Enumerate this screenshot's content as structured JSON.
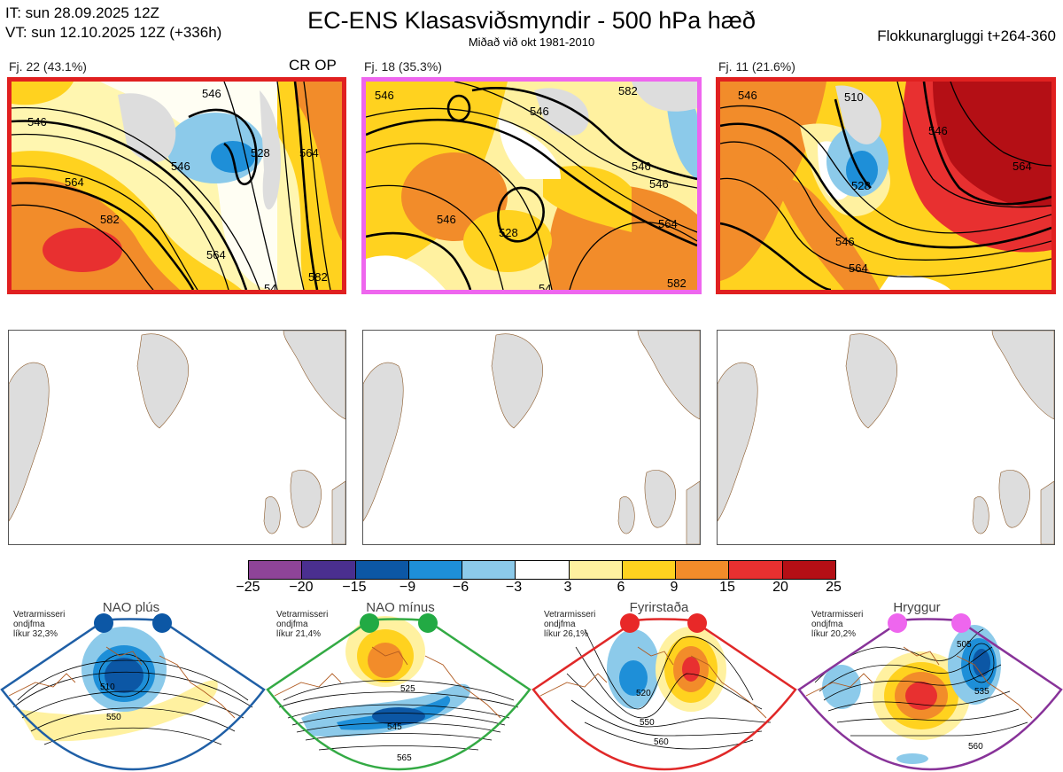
{
  "header": {
    "it": "IT: sun 28.09.2025 12Z",
    "vt": "VT: sun 12.10.2025 12Z  (+336h)",
    "title": "EC-ENS Klasasviðsmyndir - 500 hPa hæð",
    "subtitle": "Miðað við okt 1981-2010",
    "window": "Flokkunargluggi t+264-360"
  },
  "clusters": [
    {
      "label": "Fj. 22 (43.1%)",
      "tag": "CR OP",
      "border_color": "#e02020",
      "contours": [
        "546",
        "528",
        "546",
        "564",
        "582",
        "564",
        "546",
        "564",
        "582",
        "54"
      ]
    },
    {
      "label": "Fj. 18 (35.3%)",
      "tag": "",
      "border_color": "#ee66ee",
      "contours": [
        "546",
        "546",
        "528",
        "546",
        "564",
        "546",
        "582",
        "54",
        "582",
        "546"
      ]
    },
    {
      "label": "Fj. 11 (21.6%)",
      "tag": "",
      "border_color": "#e02020",
      "contours": [
        "510",
        "528",
        "546",
        "546",
        "564",
        "564",
        "546"
      ]
    }
  ],
  "colorbar": {
    "ticks": [
      "−25",
      "−20",
      "−15",
      "−9",
      "−6",
      "−3",
      "3",
      "6",
      "9",
      "15",
      "20",
      "25"
    ],
    "colors": [
      "#8e4498",
      "#4a2f8f",
      "#0c57a5",
      "#1e8fd8",
      "#8ccaea",
      "#ffffff",
      "#fff1a0",
      "#ffd21f",
      "#f28c2a",
      "#e83030",
      "#b40f15"
    ]
  },
  "regimes": [
    {
      "title": "NAO plús",
      "note": [
        "Vetrarmisseri",
        "ondjfma",
        "líkur 32,3%"
      ],
      "border_color": "#1f5fa6",
      "dot_color": "#0c57a5",
      "contours": [
        "510",
        "550"
      ]
    },
    {
      "title": "NAO mínus",
      "note": [
        "Vetrarmisseri",
        "ondjfma",
        "líkur 21,4%"
      ],
      "border_color": "#33aa44",
      "dot_color": "#22aa44",
      "contours": [
        "525",
        "545",
        "565"
      ]
    },
    {
      "title": "Fyrirstaða",
      "note": [
        "Vetrarmisseri",
        "ondjfma",
        "líkur 26,1%"
      ],
      "border_color": "#e02828",
      "dot_color": "#e82828",
      "contours": [
        "520",
        "550",
        "560"
      ]
    },
    {
      "title": "Hryggur",
      "note": [
        "Vetrarmisseri",
        "ondjfma",
        "líkur 20,2%"
      ],
      "border_color": "#883399",
      "dot_color": "#ee66ee",
      "contours": [
        "505",
        "535",
        "560"
      ]
    }
  ]
}
